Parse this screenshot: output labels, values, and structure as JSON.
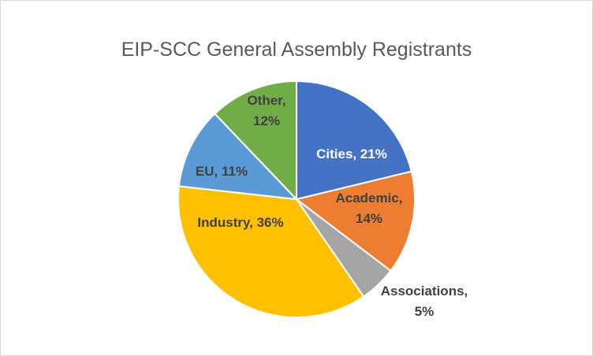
{
  "chart_data": {
    "type": "pie",
    "title": "EIP-SCC General Assembly Registrants",
    "slices": [
      {
        "category": "Cities",
        "value": 21,
        "label_line1": "Cities, 21%",
        "label_line2": "",
        "color": "#4472c4",
        "label_color": "#ffffff"
      },
      {
        "category": "Academic",
        "value": 14,
        "label_line1": "Academic,",
        "label_line2": "14%",
        "color": "#ed7d31",
        "label_color": "#404040"
      },
      {
        "category": "Associations",
        "value": 5,
        "label_line1": "Associations,",
        "label_line2": "5%",
        "color": "#a5a5a5",
        "label_color": "#404040"
      },
      {
        "category": "Industry",
        "value": 36,
        "label_line1": "Industry, 36%",
        "label_line2": "",
        "color": "#ffc000",
        "label_color": "#404040"
      },
      {
        "category": "EU",
        "value": 11,
        "label_line1": "EU, 11%",
        "label_line2": "",
        "color": "#5b9bd5",
        "label_color": "#404040"
      },
      {
        "category": "Other",
        "value": 12,
        "label_line1": "Other,",
        "label_line2": "12%",
        "color": "#70ad47",
        "label_color": "#404040"
      }
    ],
    "start_angle": "12 o'clock",
    "direction": "clockwise",
    "legend": "none"
  }
}
